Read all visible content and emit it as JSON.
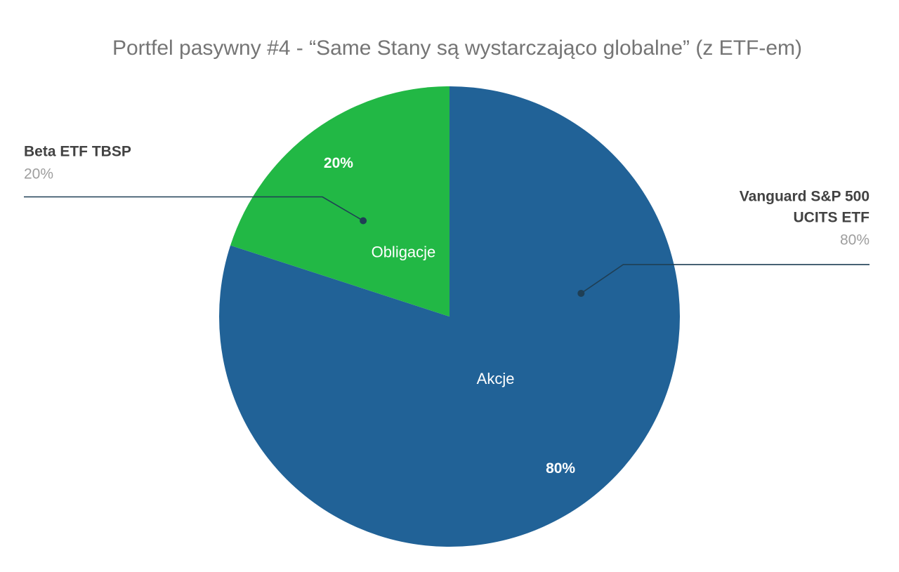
{
  "chart_data": {
    "type": "pie",
    "title": "Portfel pasywny #4 - “Same Stany są wystarczająco globalne” (z ETF-em)",
    "categories": [
      "Akcje",
      "Obligacje"
    ],
    "values": [
      80,
      20
    ],
    "value_labels": [
      "80%",
      "20%"
    ],
    "callout_labels": [
      [
        "Vanguard S&P 500",
        "UCITS ETF"
      ],
      [
        "Beta ETF TBSP"
      ]
    ],
    "colors": [
      "#216297",
      "#22b845"
    ]
  }
}
